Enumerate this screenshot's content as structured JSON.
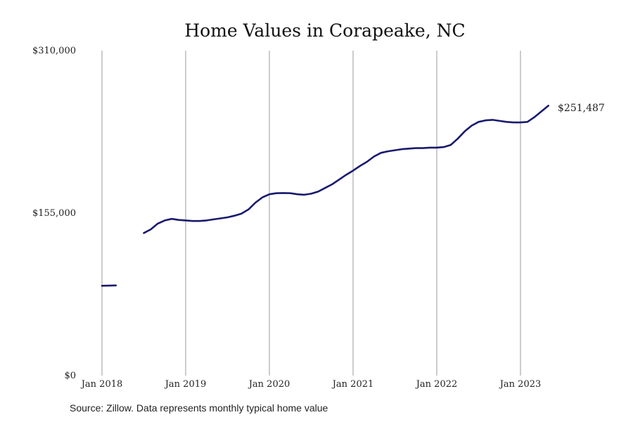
{
  "chart_data": {
    "type": "line",
    "title": "Home Values in Corapeake, NC",
    "xlabel": "",
    "ylabel": "",
    "x_ticks": [
      "Jan 2018",
      "Jan 2019",
      "Jan 2020",
      "Jan 2021",
      "Jan 2022",
      "Jan 2023"
    ],
    "y_ticks": [
      "$0",
      "$155,000",
      "$310,000"
    ],
    "ylim": [
      0,
      310000
    ],
    "xlim": [
      "2018-01",
      "2023-06"
    ],
    "grid": "vertical",
    "legend": "none",
    "line_color": "#1a1a6e",
    "end_label": "$251,487",
    "series": [
      {
        "segments": [
          {
            "x": [
              "2018-01",
              "2018-02",
              "2018-03"
            ],
            "y": [
              85700,
              85800,
              86000
            ]
          },
          {
            "x": [
              "2018-07",
              "2018-08",
              "2018-09",
              "2018-10",
              "2018-11",
              "2018-12",
              "2019-01",
              "2019-02",
              "2019-03",
              "2019-04",
              "2019-05",
              "2019-06",
              "2019-07",
              "2019-08",
              "2019-09",
              "2019-10",
              "2019-11",
              "2019-12",
              "2020-01",
              "2020-02",
              "2020-03",
              "2020-04",
              "2020-05",
              "2020-06",
              "2020-07",
              "2020-08",
              "2020-09",
              "2020-10",
              "2020-11",
              "2020-12",
              "2021-01",
              "2021-02",
              "2021-03",
              "2021-04",
              "2021-05",
              "2021-06",
              "2021-07",
              "2021-08",
              "2021-09",
              "2021-10",
              "2021-11",
              "2021-12",
              "2022-01",
              "2022-02",
              "2022-03",
              "2022-04",
              "2022-05",
              "2022-06",
              "2022-07",
              "2022-08",
              "2022-09",
              "2022-10",
              "2022-11",
              "2022-12",
              "2023-01",
              "2023-02",
              "2023-03",
              "2023-04",
              "2023-05"
            ],
            "y": [
              136000,
              139500,
              145000,
              148000,
              149500,
              148500,
              148000,
              147500,
              147500,
              148000,
              149000,
              150000,
              151000,
              152500,
              154500,
              158500,
              165000,
              170000,
              173000,
              174000,
              174200,
              174000,
              173000,
              172500,
              173500,
              175500,
              179000,
              182500,
              187000,
              191500,
              195500,
              200000,
              204000,
              209000,
              212500,
              214000,
              215000,
              216000,
              216500,
              217000,
              217000,
              217500,
              217500,
              218000,
              220000,
              226000,
              233000,
              238500,
              242000,
              243500,
              244000,
              243000,
              242000,
              241500,
              241500,
              242000,
              246500,
              252000,
              257500
            ]
          }
        ]
      }
    ]
  },
  "footer": {
    "source": "Source: Zillow. Data represents monthly typical home value"
  }
}
